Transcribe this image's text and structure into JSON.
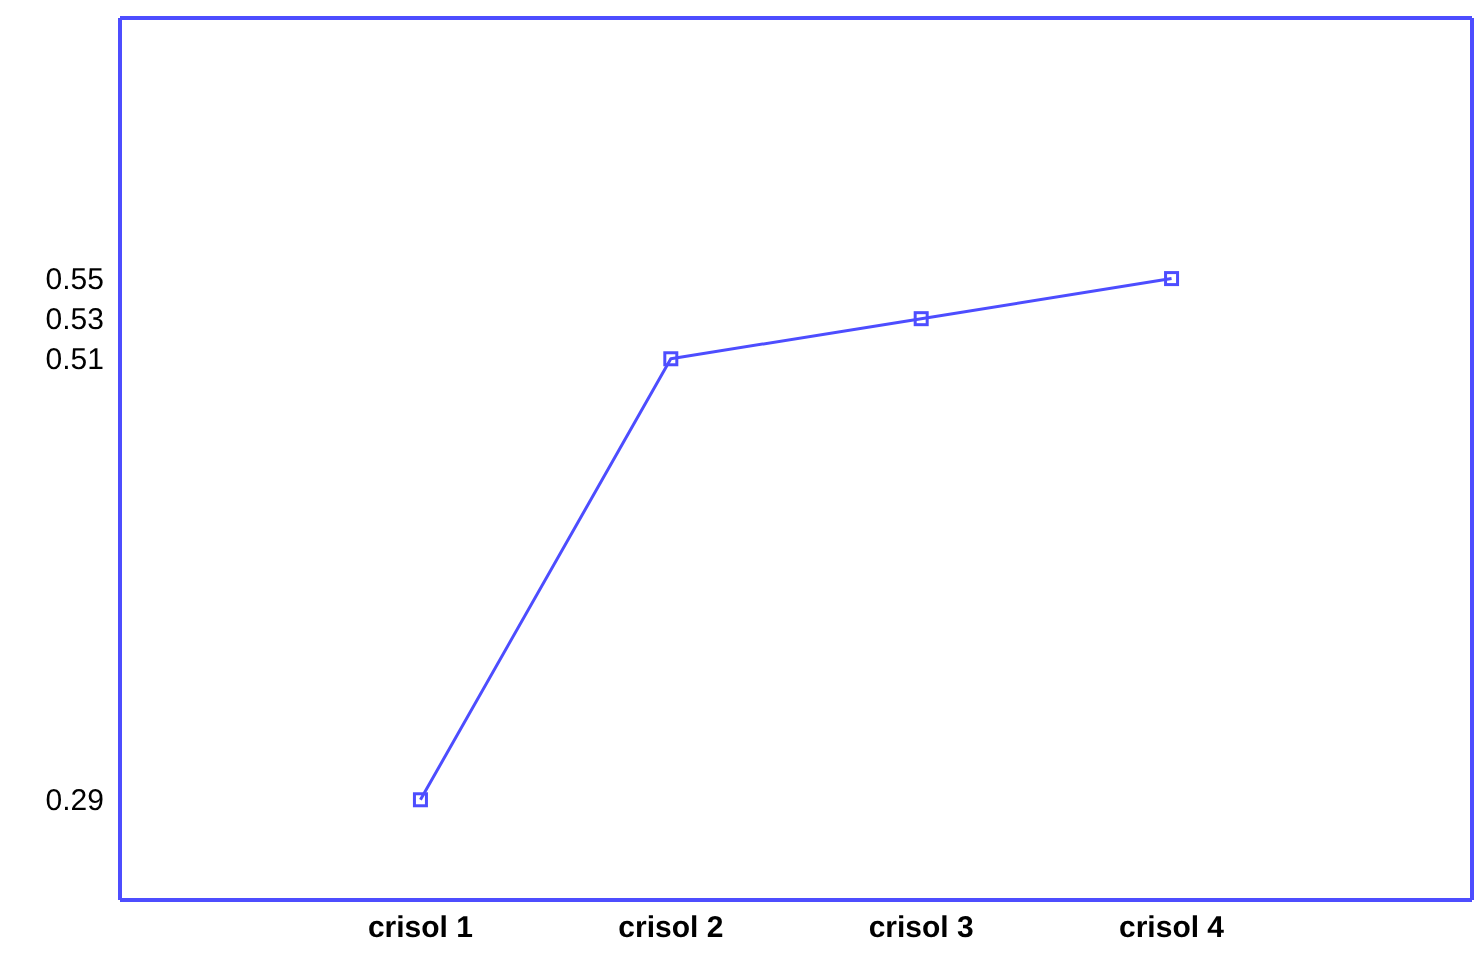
{
  "chart_data": {
    "type": "line",
    "categories": [
      "crisol 1",
      "crisol 2",
      "crisol 3",
      "crisol 4"
    ],
    "series": [
      {
        "color": "#4d4dff",
        "values": [
          0.29,
          0.51,
          0.53,
          0.55
        ]
      }
    ],
    "ylim": [
      0.24,
      0.68
    ],
    "yticks": [
      0.29,
      0.51,
      0.53,
      0.55
    ],
    "marker": "square",
    "line_style": "solid"
  }
}
